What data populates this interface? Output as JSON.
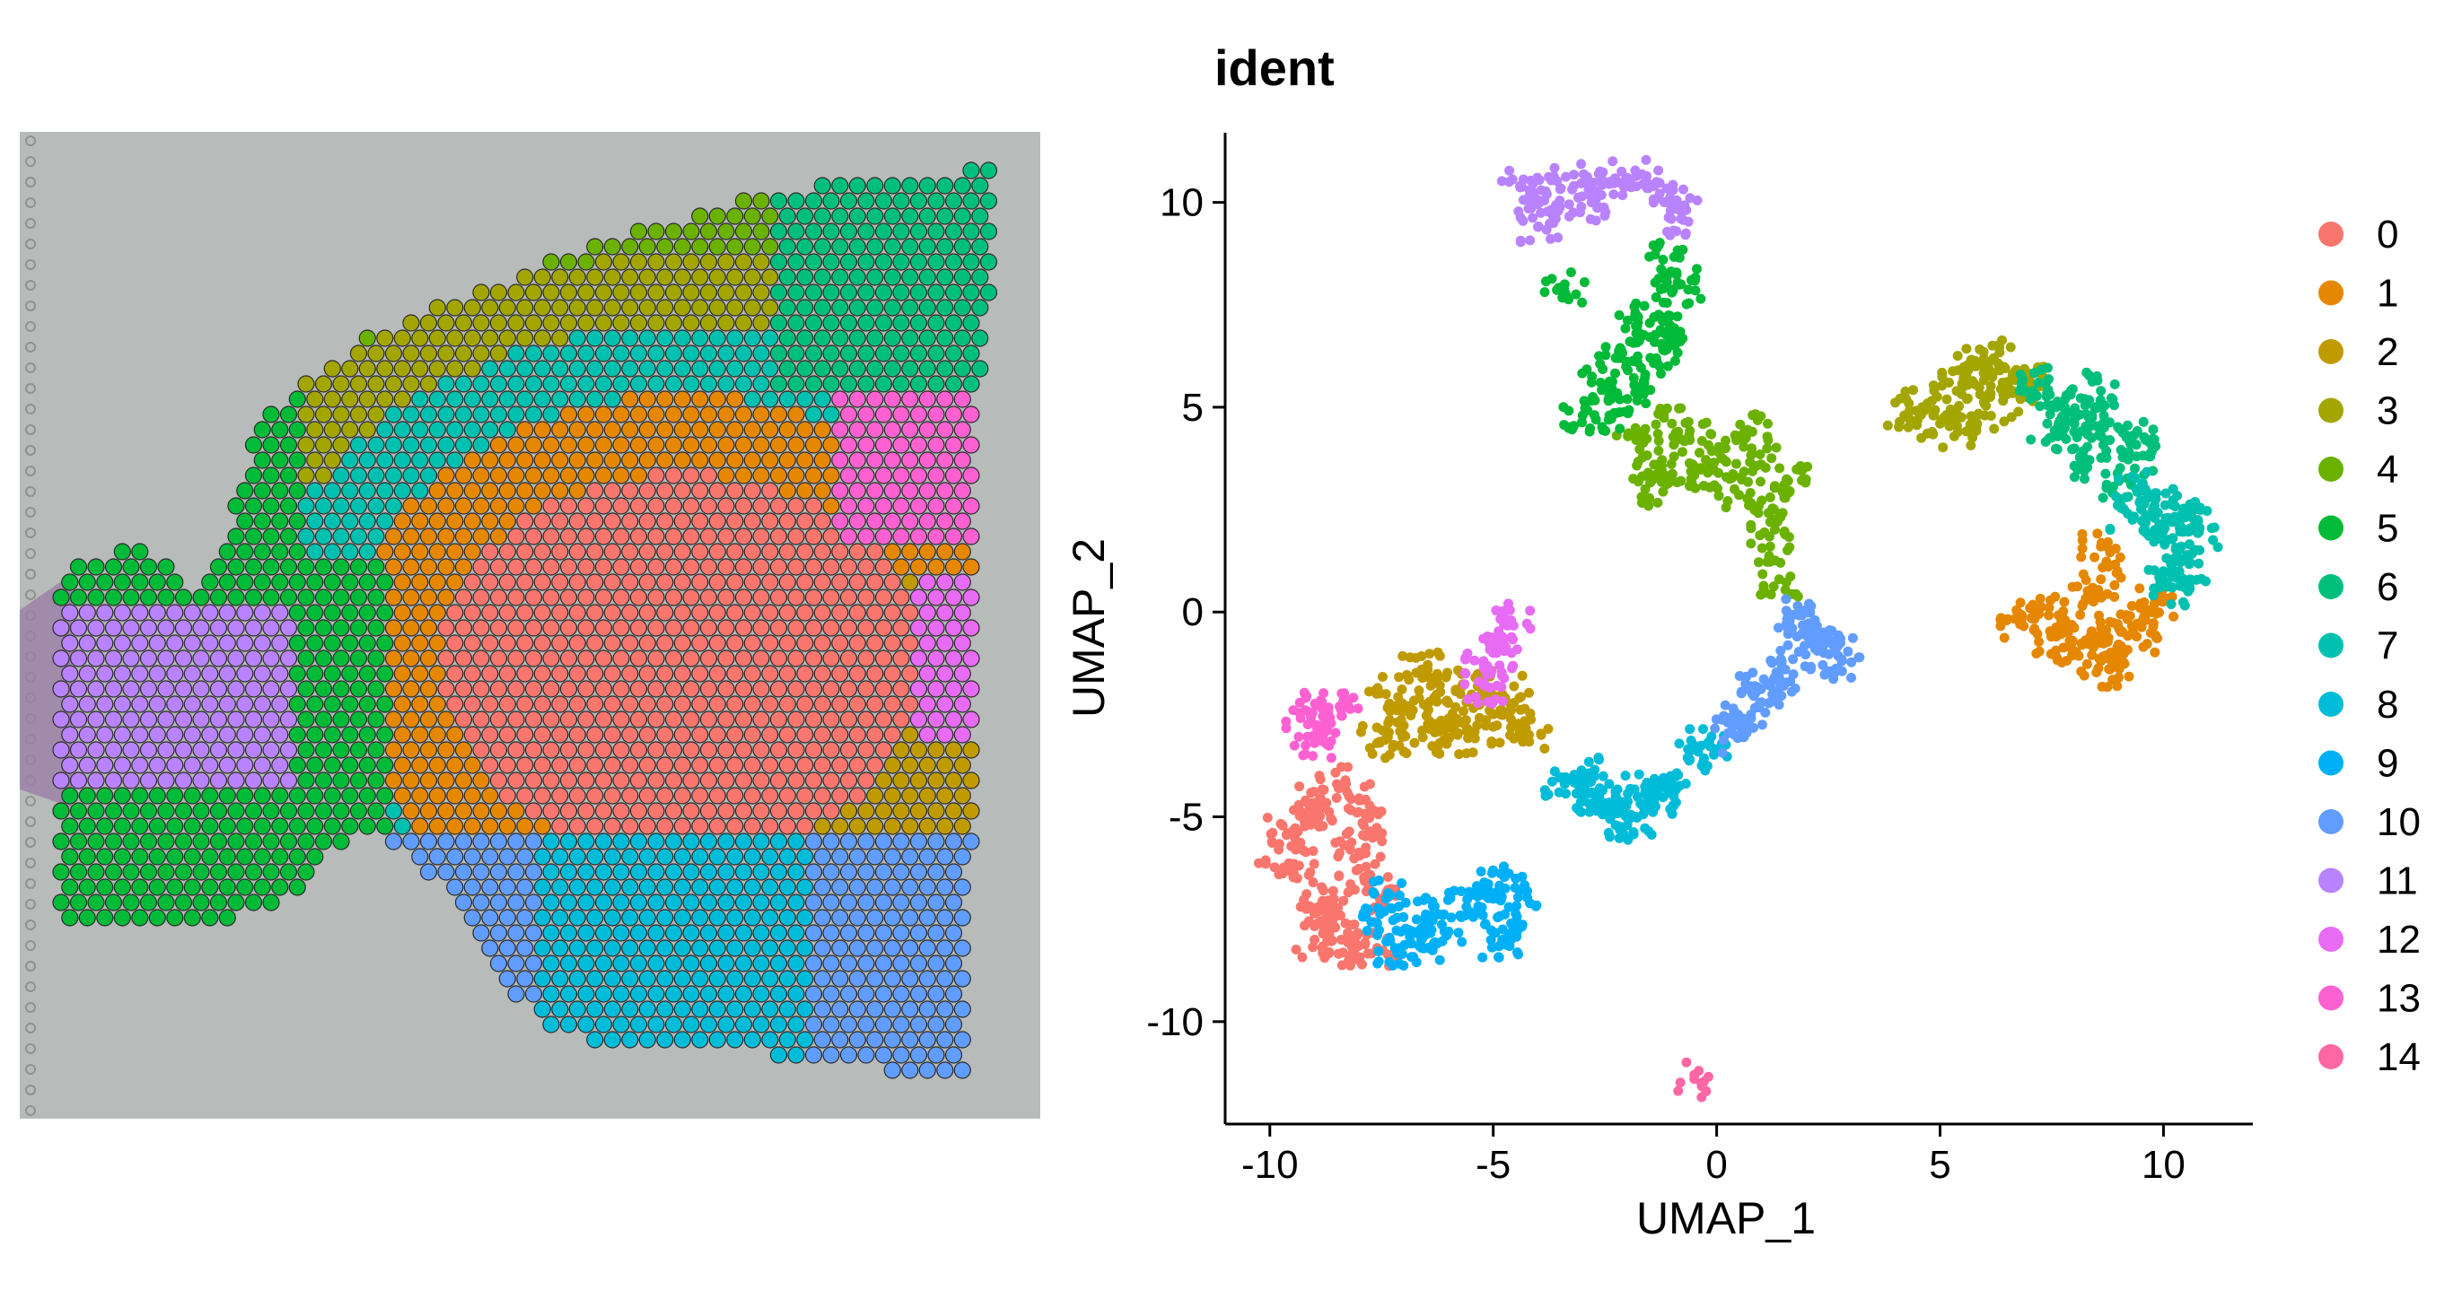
{
  "chart_data": [
    {
      "type": "spatial-scatter",
      "title": "",
      "note_colors": "spots colored by cluster id on H&E tissue image",
      "spots": [
        {
          "cluster": 4,
          "region": "top rim"
        },
        {
          "cluster": 3,
          "region": "upper outer band"
        },
        {
          "cluster": 7,
          "region": "middle band"
        },
        {
          "cluster": 1,
          "region": "inner band"
        },
        {
          "cluster": 0,
          "region": "center"
        },
        {
          "cluster": 13,
          "region": "right edge"
        },
        {
          "cluster": 12,
          "region": "right edge"
        },
        {
          "cluster": 2,
          "region": "lower right"
        },
        {
          "cluster": 8,
          "region": "bottom"
        },
        {
          "cluster": 10,
          "region": "bottom / lower left"
        },
        {
          "cluster": 11,
          "region": "left lobe"
        },
        {
          "cluster": 5,
          "region": "left lobe"
        },
        {
          "cluster": 6,
          "region": "upper right band"
        }
      ]
    },
    {
      "type": "scatter",
      "title": "ident",
      "xlabel": "UMAP_1",
      "ylabel": "UMAP_2",
      "xlim": [
        -11,
        12
      ],
      "ylim": [
        -12.5,
        11.7
      ],
      "xticks": [
        -10,
        -5,
        0,
        5,
        10
      ],
      "yticks": [
        -10,
        -5,
        0,
        5,
        10
      ],
      "xtick_labels": [
        "-10",
        "-5",
        "0",
        "5",
        "10"
      ],
      "ytick_labels": [
        "-10",
        "-5",
        "0",
        "5",
        "10"
      ],
      "legend_position": "right",
      "series": [
        {
          "name": "0",
          "color": "#F8766D",
          "points": [
            [
              -9.6,
              -5.4
            ],
            [
              -9.4,
              -6.2
            ],
            [
              -9.0,
              -5.0
            ],
            [
              -8.8,
              -6.8
            ],
            [
              -8.6,
              -7.6
            ],
            [
              -8.2,
              -5.8
            ],
            [
              -8.0,
              -4.6
            ],
            [
              -8.4,
              -8.0
            ],
            [
              -7.8,
              -6.4
            ],
            [
              -7.6,
              -7.2
            ],
            [
              -9.2,
              -4.6
            ],
            [
              -9.8,
              -5.8
            ],
            [
              -8.9,
              -7.3
            ],
            [
              -7.9,
              -5.2
            ],
            [
              -8.5,
              -4.2
            ],
            [
              -7.6,
              -8.2
            ],
            [
              -9.0,
              -8.0
            ],
            [
              -8.2,
              -8.4
            ]
          ]
        },
        {
          "name": "1",
          "color": "#E58700",
          "points": [
            [
              7.8,
              -0.2
            ],
            [
              8.4,
              -0.8
            ],
            [
              8.8,
              -1.4
            ],
            [
              8.0,
              -1.0
            ],
            [
              9.4,
              -0.6
            ],
            [
              9.6,
              -0.2
            ],
            [
              8.6,
              0.8
            ],
            [
              9.0,
              -0.4
            ],
            [
              8.2,
              0.2
            ],
            [
              7.2,
              0.0
            ],
            [
              8.6,
              -1.2
            ],
            [
              9.8,
              0.2
            ],
            [
              6.8,
              -0.2
            ],
            [
              7.6,
              -0.6
            ],
            [
              8.6,
              1.6
            ]
          ]
        },
        {
          "name": "2",
          "color": "#C09B00",
          "points": [
            [
              -7.4,
              -2.0
            ],
            [
              -6.8,
              -2.4
            ],
            [
              -6.4,
              -1.8
            ],
            [
              -6.0,
              -2.6
            ],
            [
              -5.6,
              -2.2
            ],
            [
              -5.0,
              -2.8
            ],
            [
              -4.6,
              -2.4
            ],
            [
              -4.2,
              -3.0
            ],
            [
              -7.0,
              -3.0
            ],
            [
              -6.2,
              -3.2
            ],
            [
              -5.4,
              -1.6
            ],
            [
              -7.6,
              -3.2
            ],
            [
              -6.6,
              -1.4
            ],
            [
              -4.8,
              -2.0
            ],
            [
              -5.8,
              -3.0
            ]
          ]
        },
        {
          "name": "3",
          "color": "#A3A500",
          "points": [
            [
              4.6,
              5.0
            ],
            [
              5.2,
              5.6
            ],
            [
              5.8,
              6.0
            ],
            [
              6.4,
              5.6
            ],
            [
              5.0,
              4.6
            ],
            [
              6.0,
              4.8
            ],
            [
              6.8,
              5.2
            ],
            [
              5.6,
              5.2
            ],
            [
              4.2,
              4.8
            ],
            [
              6.2,
              6.2
            ],
            [
              7.0,
              5.6
            ],
            [
              5.4,
              4.4
            ]
          ]
        },
        {
          "name": "4",
          "color": "#6BB100",
          "points": [
            [
              -1.4,
              3.6
            ],
            [
              -0.8,
              3.2
            ],
            [
              -0.2,
              3.4
            ],
            [
              0.4,
              3.0
            ],
            [
              1.0,
              3.6
            ],
            [
              1.6,
              3.2
            ],
            [
              -1.8,
              4.2
            ],
            [
              -1.0,
              4.6
            ],
            [
              0.2,
              4.0
            ],
            [
              0.8,
              4.4
            ],
            [
              1.2,
              2.8
            ],
            [
              1.2,
              1.6
            ],
            [
              1.4,
              0.8
            ],
            [
              1.2,
              2.2
            ],
            [
              -1.6,
              3.0
            ],
            [
              -0.6,
              4.2
            ]
          ]
        },
        {
          "name": "5",
          "color": "#00BA38",
          "points": [
            [
              -3.0,
              4.8
            ],
            [
              -2.6,
              5.6
            ],
            [
              -2.2,
              6.2
            ],
            [
              -1.8,
              6.8
            ],
            [
              -1.4,
              7.2
            ],
            [
              -1.0,
              7.8
            ],
            [
              -1.2,
              6.4
            ],
            [
              -2.0,
              5.2
            ],
            [
              -1.6,
              5.8
            ],
            [
              -0.8,
              8.0
            ],
            [
              -1.2,
              8.6
            ],
            [
              -3.4,
              8.0
            ],
            [
              -2.4,
              4.8
            ],
            [
              -1.0,
              6.8
            ]
          ]
        },
        {
          "name": "6",
          "color": "#00BF7D",
          "points": [
            [
              7.2,
              5.6
            ],
            [
              7.8,
              5.2
            ],
            [
              8.4,
              4.8
            ],
            [
              8.8,
              4.2
            ],
            [
              9.4,
              3.8
            ],
            [
              8.0,
              4.4
            ],
            [
              7.4,
              4.6
            ],
            [
              9.0,
              3.2
            ],
            [
              8.2,
              3.6
            ],
            [
              7.6,
              5.0
            ],
            [
              8.6,
              5.4
            ],
            [
              9.6,
              4.2
            ]
          ]
        },
        {
          "name": "7",
          "color": "#00C0AF",
          "points": [
            [
              9.4,
              3.0
            ],
            [
              9.8,
              2.6
            ],
            [
              10.2,
              2.2
            ],
            [
              10.6,
              2.6
            ],
            [
              10.4,
              1.6
            ],
            [
              10.0,
              1.0
            ],
            [
              9.8,
              2.0
            ],
            [
              10.6,
              1.2
            ],
            [
              9.2,
              2.4
            ],
            [
              10.2,
              0.6
            ],
            [
              10.8,
              2.0
            ]
          ]
        },
        {
          "name": "8",
          "color": "#00BCD8",
          "points": [
            [
              -3.4,
              -4.2
            ],
            [
              -2.8,
              -4.4
            ],
            [
              -2.2,
              -4.6
            ],
            [
              -1.8,
              -5.0
            ],
            [
              -1.4,
              -4.6
            ],
            [
              -1.0,
              -4.2
            ],
            [
              -0.6,
              -3.6
            ],
            [
              -0.2,
              -3.2
            ],
            [
              -2.0,
              -5.2
            ],
            [
              -2.6,
              -4.8
            ],
            [
              -3.0,
              -4.0
            ],
            [
              -1.6,
              -4.4
            ]
          ]
        },
        {
          "name": "9",
          "color": "#00B0F6",
          "points": [
            [
              -7.6,
              -7.6
            ],
            [
              -7.2,
              -8.2
            ],
            [
              -6.8,
              -7.8
            ],
            [
              -6.4,
              -7.4
            ],
            [
              -6.0,
              -7.8
            ],
            [
              -5.6,
              -7.2
            ],
            [
              -5.0,
              -7.0
            ],
            [
              -4.6,
              -7.6
            ],
            [
              -4.4,
              -6.8
            ],
            [
              -5.2,
              -6.6
            ],
            [
              -6.6,
              -8.2
            ],
            [
              -7.4,
              -7.0
            ],
            [
              -4.8,
              -8.0
            ]
          ]
        },
        {
          "name": "10",
          "color": "#619CFF",
          "points": [
            [
              0.6,
              -2.6
            ],
            [
              1.0,
              -2.2
            ],
            [
              0.8,
              -2.0
            ],
            [
              1.4,
              -1.6
            ],
            [
              1.8,
              -0.6
            ],
            [
              2.2,
              -0.2
            ],
            [
              2.6,
              -0.8
            ],
            [
              2.8,
              -1.2
            ],
            [
              2.0,
              0.0
            ],
            [
              2.4,
              -1.0
            ],
            [
              0.4,
              -3.0
            ],
            [
              1.2,
              -1.8
            ]
          ]
        },
        {
          "name": "11",
          "color": "#B983FF",
          "points": [
            [
              -4.4,
              10.4
            ],
            [
              -3.8,
              10.2
            ],
            [
              -3.2,
              10.4
            ],
            [
              -2.6,
              10.6
            ],
            [
              -2.0,
              10.6
            ],
            [
              -1.4,
              10.4
            ],
            [
              -1.0,
              10.0
            ],
            [
              -0.8,
              9.6
            ],
            [
              -3.6,
              9.6
            ],
            [
              -2.8,
              10.0
            ],
            [
              -4.0,
              9.4
            ]
          ]
        },
        {
          "name": "12",
          "color": "#E76BF3",
          "points": [
            [
              -5.2,
              -1.4
            ],
            [
              -5.0,
              -1.0
            ],
            [
              -4.8,
              -0.6
            ],
            [
              -4.6,
              -0.2
            ],
            [
              -5.2,
              -1.8
            ]
          ]
        },
        {
          "name": "13",
          "color": "#FD61D1",
          "points": [
            [
              -9.2,
              -2.4
            ],
            [
              -8.8,
              -2.4
            ],
            [
              -8.4,
              -2.4
            ],
            [
              -8.8,
              -2.8
            ],
            [
              -9.0,
              -3.2
            ]
          ]
        },
        {
          "name": "14",
          "color": "#FF67A4",
          "points": [
            [
              -0.5,
              -11.3
            ],
            [
              -0.4,
              -11.2
            ],
            [
              -0.5,
              -11.4
            ]
          ]
        }
      ]
    }
  ]
}
